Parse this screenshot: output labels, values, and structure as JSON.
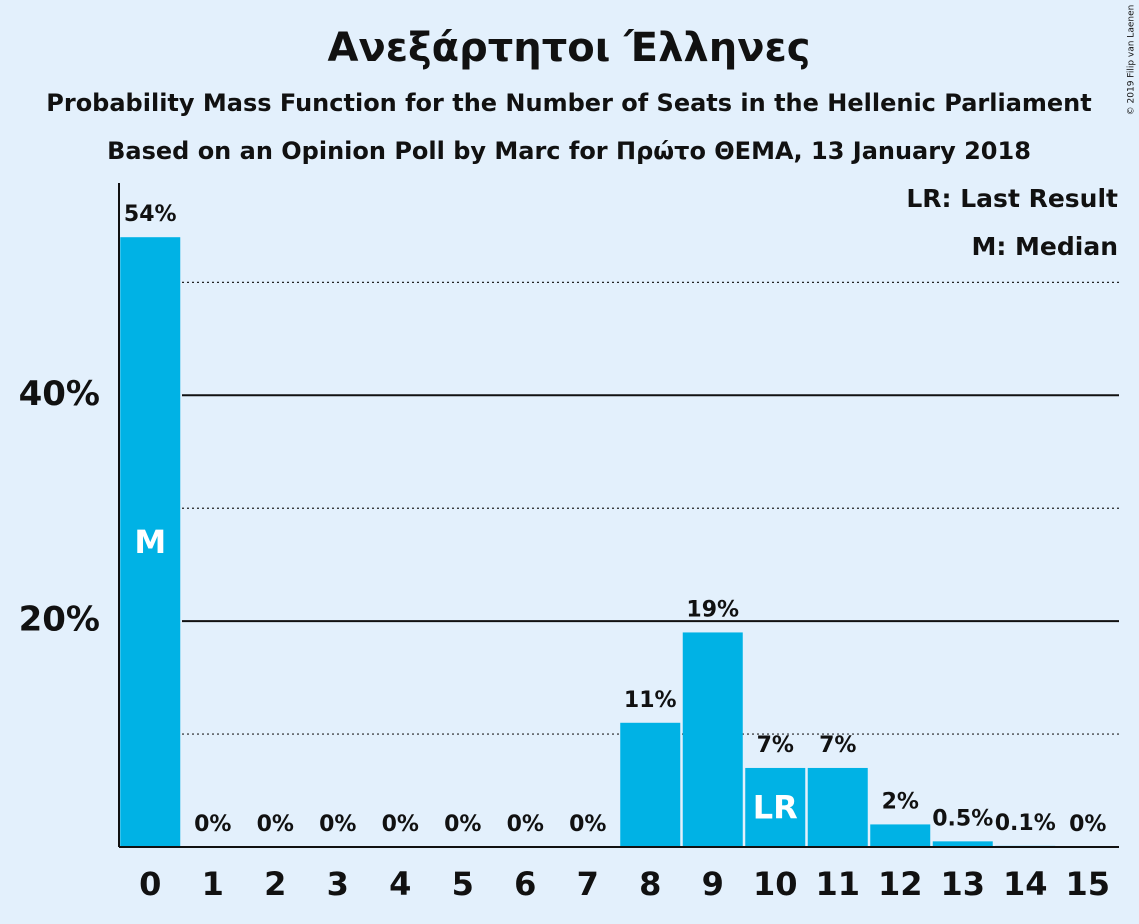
{
  "chart_data": {
    "type": "bar",
    "title": "Ανεξάρτητοι Έλληνες",
    "subtitle": "Probability Mass Function for the Number of Seats in the Hellenic Parliament",
    "subtitle2": "Based on an Opinion Poll by Marc for Πρώτο ΘΕΜΑ, 13 January 2018",
    "copyright": "© 2019 Filip van Laenen",
    "legend": [
      "LR: Last Result",
      "M: Median"
    ],
    "categories": [
      0,
      1,
      2,
      3,
      4,
      5,
      6,
      7,
      8,
      9,
      10,
      11,
      12,
      13,
      14,
      15
    ],
    "values": [
      54,
      0,
      0,
      0,
      0,
      0,
      0,
      0,
      11,
      19,
      7,
      7,
      2,
      0.5,
      0.1,
      0
    ],
    "value_labels": [
      "54%",
      "0%",
      "0%",
      "0%",
      "0%",
      "0%",
      "0%",
      "0%",
      "11%",
      "19%",
      "7%",
      "7%",
      "2%",
      "0.5%",
      "0.1%",
      "0%"
    ],
    "markers": [
      {
        "category": 0,
        "text": "M"
      },
      {
        "category": 10,
        "text": "LR"
      }
    ],
    "color": "#00b2e5",
    "ylim": [
      0,
      58.8
    ],
    "yticks": [
      {
        "value": 20,
        "label": "20%"
      },
      {
        "value": 40,
        "label": "40%"
      }
    ],
    "minor_grid": [
      10,
      30,
      50
    ],
    "grid": true
  }
}
